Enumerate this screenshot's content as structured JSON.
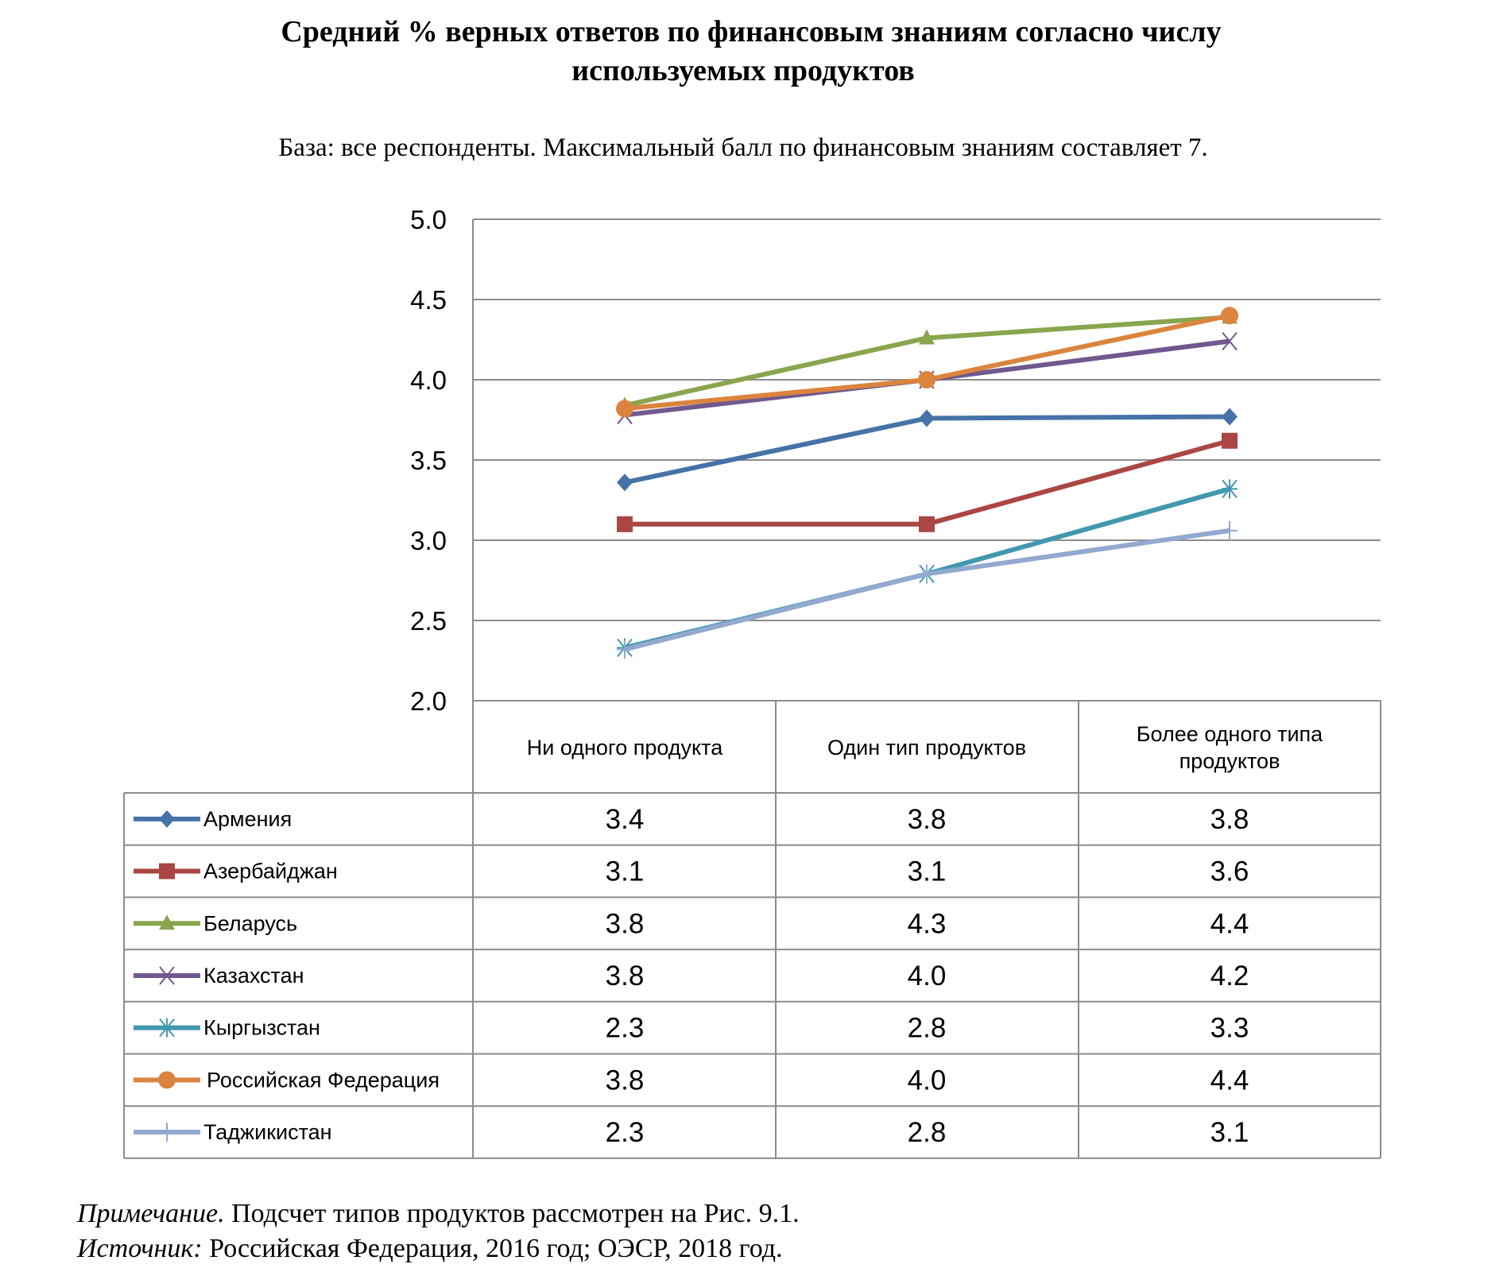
{
  "chart_data": {
    "type": "line",
    "title_line1": "Средний % верных ответов по финансовым знаниям согласно числу",
    "title_line2": "используемых продуктов",
    "subtitle": "База: все респонденты. Максимальный балл по финансовым знаниям составляет 7.",
    "categories": [
      "Ни одного продукта",
      "Один тип продуктов",
      "Более одного типа продуктов"
    ],
    "category_lines": [
      [
        "Ни одного продукта"
      ],
      [
        "Один тип продуктов"
      ],
      [
        "Более одного типа",
        "продуктов"
      ]
    ],
    "ylim": [
      2.0,
      5.0
    ],
    "yticks": [
      "2.0",
      "2.5",
      "3.0",
      "3.5",
      "4.0",
      "4.5",
      "5.0"
    ],
    "grid": true,
    "legend_placement": "data-table-left",
    "series": [
      {
        "name": "Армения",
        "color": "#4572A7",
        "marker": "diamond",
        "values": [
          3.36,
          3.76,
          3.77
        ],
        "labels": [
          "3.4",
          "3.8",
          "3.8"
        ]
      },
      {
        "name": "Азербайджан",
        "color": "#AA4643",
        "marker": "square",
        "values": [
          3.1,
          3.1,
          3.62
        ],
        "labels": [
          "3.1",
          "3.1",
          "3.6"
        ]
      },
      {
        "name": "Беларусь",
        "color": "#89A54E",
        "marker": "triangle",
        "values": [
          3.84,
          4.26,
          4.39
        ],
        "labels": [
          "3.8",
          "4.3",
          "4.4"
        ]
      },
      {
        "name": "Казахстан",
        "color": "#71588F",
        "marker": "x",
        "values": [
          3.78,
          4.0,
          4.24
        ],
        "labels": [
          "3.8",
          "4.0",
          "4.2"
        ]
      },
      {
        "name": "Кыргызстан",
        "color": "#4198AF",
        "marker": "star",
        "values": [
          2.33,
          2.79,
          3.32
        ],
        "labels": [
          "2.3",
          "2.8",
          "3.3"
        ]
      },
      {
        "name": "Российская Федерация",
        "color": "#DB843D",
        "marker": "circle",
        "values": [
          3.82,
          4.0,
          4.4
        ],
        "labels": [
          "3.8",
          "4.0",
          "4.4"
        ]
      },
      {
        "name": "Таджикистан",
        "color": "#93A9CF",
        "marker": "plus",
        "values": [
          2.32,
          2.79,
          3.06
        ],
        "labels": [
          "2.3",
          "2.8",
          "3.1"
        ]
      }
    ]
  },
  "notes": {
    "note_label": "Примечание.",
    "note_text": " Подсчет типов продуктов рассмотрен на Рис. 9.1.",
    "source_label": "Источник:",
    "source_text": " Российская Федерация, 2016 год; ОЭСР, 2018 год."
  }
}
